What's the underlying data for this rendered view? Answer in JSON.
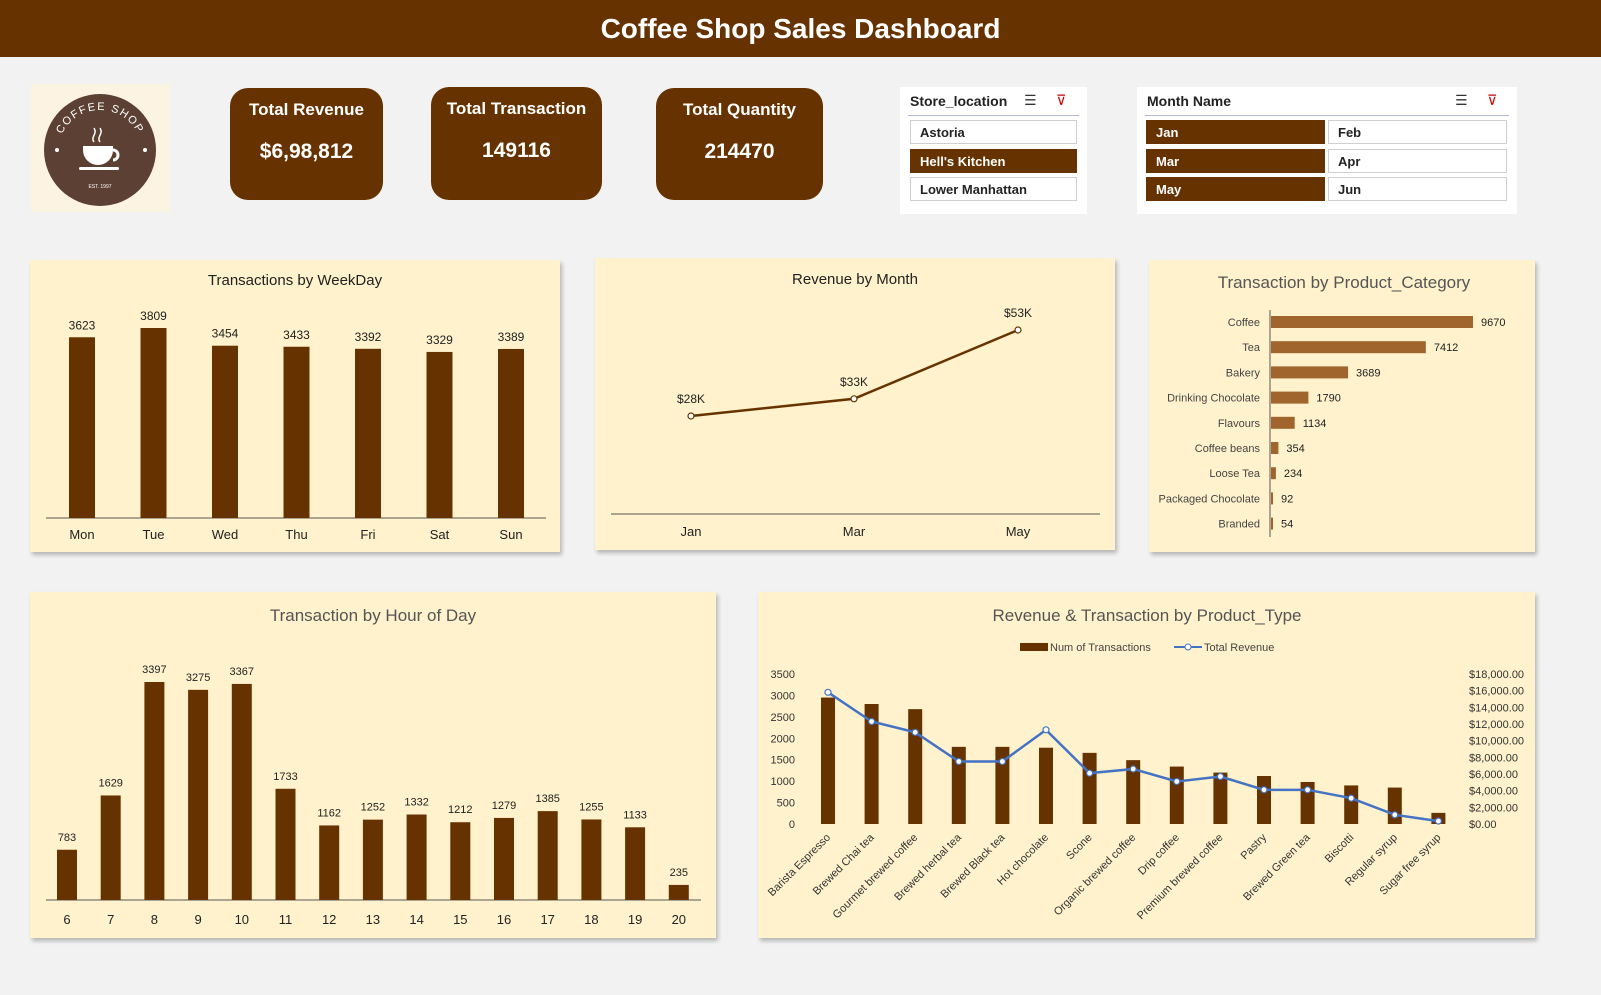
{
  "header": {
    "title": "Coffee Shop Sales Dashboard"
  },
  "logo": {
    "text": "COFFEE SHOP",
    "est": "EST. 1997",
    "circle_color": "#5c4033"
  },
  "kpis": [
    {
      "label": "Total Revenue",
      "value": "$6,98,812"
    },
    {
      "label": "Total Transaction",
      "value": "149116"
    },
    {
      "label": "Total Quantity",
      "value": "214470"
    }
  ],
  "slicers": {
    "store": {
      "title": "Store_location",
      "items": [
        {
          "label": "Astoria",
          "selected": false
        },
        {
          "label": "Hell's Kitchen",
          "selected": true
        },
        {
          "label": "Lower Manhattan",
          "selected": false
        }
      ]
    },
    "month": {
      "title": "Month Name",
      "items": [
        {
          "label": "Jan",
          "selected": true
        },
        {
          "label": "Feb",
          "selected": false
        },
        {
          "label": "Mar",
          "selected": true
        },
        {
          "label": "Apr",
          "selected": false
        },
        {
          "label": "May",
          "selected": true
        },
        {
          "label": "Jun",
          "selected": false
        }
      ]
    }
  },
  "colors": {
    "brand": "#663300",
    "panel": "#fff2cc",
    "bar_light": "#a0642d",
    "line": "#4472c4"
  },
  "chart_data": [
    {
      "id": "weekday",
      "type": "bar",
      "title": "Transactions by WeekDay",
      "categories": [
        "Mon",
        "Tue",
        "Wed",
        "Thu",
        "Fri",
        "Sat",
        "Sun"
      ],
      "values": [
        3623,
        3809,
        3454,
        3433,
        3392,
        3329,
        3389
      ]
    },
    {
      "id": "month",
      "type": "line",
      "title": "Revenue by Month",
      "categories": [
        "Jan",
        "Mar",
        "May"
      ],
      "values": [
        28,
        33,
        53
      ],
      "labels": [
        "$28K",
        "$33K",
        "$53K"
      ]
    },
    {
      "id": "category",
      "type": "bar",
      "orientation": "horizontal",
      "title": "Transaction by Product_Category",
      "categories": [
        "Coffee",
        "Tea",
        "Bakery",
        "Drinking Chocolate",
        "Flavours",
        "Coffee beans",
        "Loose Tea",
        "Packaged Chocolate",
        "Branded"
      ],
      "values": [
        9670,
        7412,
        3689,
        1790,
        1134,
        354,
        234,
        92,
        54
      ]
    },
    {
      "id": "hour",
      "type": "bar",
      "title": "Transaction by Hour of Day",
      "categories": [
        "6",
        "7",
        "8",
        "9",
        "10",
        "11",
        "12",
        "13",
        "14",
        "15",
        "16",
        "17",
        "18",
        "19",
        "20"
      ],
      "values": [
        783,
        1629,
        3397,
        3275,
        3367,
        1733,
        1162,
        1252,
        1332,
        1212,
        1279,
        1385,
        1255,
        1133,
        235
      ]
    },
    {
      "id": "product",
      "type": "bar+line",
      "title": "Revenue & Transaction by Product_Type",
      "categories": [
        "Barista Espresso",
        "Brewed Chai tea",
        "Gourmet brewed coffee",
        "Brewed herbal tea",
        "Brewed Black tea",
        "Hot chocolate",
        "Scone",
        "Organic brewed coffee",
        "Drip coffee",
        "Premium brewed coffee",
        "Pastry",
        "Brewed Green tea",
        "Biscotti",
        "Regular syrup",
        "Sugar free syrup"
      ],
      "series": [
        {
          "name": "Num of Transactions",
          "axis": "left",
          "values": [
            2950,
            2800,
            2680,
            1800,
            1800,
            1780,
            1660,
            1490,
            1340,
            1200,
            1120,
            980,
            900,
            850,
            260
          ]
        },
        {
          "name": "Total Revenue",
          "axis": "right",
          "values": [
            15800,
            12300,
            11000,
            7500,
            7500,
            11300,
            6100,
            6600,
            5100,
            5700,
            4100,
            4100,
            3100,
            1100,
            350
          ]
        }
      ],
      "y_left": {
        "min": 0,
        "max": 3500,
        "ticks": [
          "0",
          "500",
          "1000",
          "1500",
          "2000",
          "2500",
          "3000",
          "3500"
        ]
      },
      "y_right": {
        "min": 0,
        "max": 18000,
        "ticks": [
          "$0.00",
          "$2,000.00",
          "$4,000.00",
          "$6,000.00",
          "$8,000.00",
          "$10,000.00",
          "$12,000.00",
          "$14,000.00",
          "$16,000.00",
          "$18,000.00"
        ]
      }
    }
  ]
}
